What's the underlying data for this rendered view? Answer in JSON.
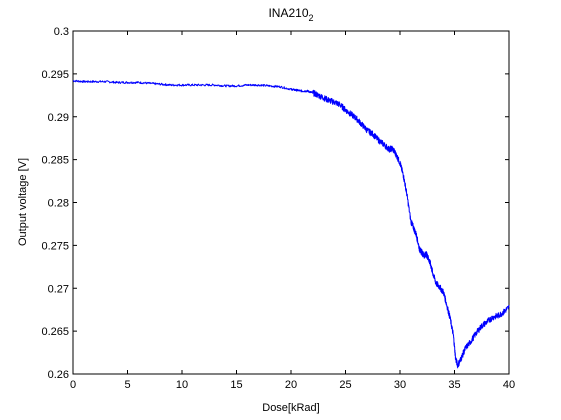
{
  "chart_data": {
    "type": "line",
    "title": "INA210",
    "title_subscript": "2",
    "xlabel": "Dose[kRad]",
    "ylabel": "Output voltage [V]",
    "xlim": [
      0,
      40
    ],
    "ylim": [
      0.26,
      0.3
    ],
    "grid": false,
    "x_ticks": [
      0,
      5,
      10,
      15,
      20,
      25,
      30,
      35,
      40
    ],
    "x_tick_labels": [
      "0",
      "5",
      "10",
      "15",
      "20",
      "25",
      "30",
      "35",
      "40"
    ],
    "y_ticks": [
      0.26,
      0.265,
      0.27,
      0.275,
      0.28,
      0.285,
      0.29,
      0.295,
      0.3
    ],
    "y_tick_labels": [
      "0.26",
      "0.265",
      "0.27",
      "0.275",
      "0.28",
      "0.285",
      "0.29",
      "0.295",
      "0.3"
    ],
    "series_color": "#0000ff",
    "series": [
      {
        "x": [
          0,
          1,
          2,
          3,
          4,
          5,
          6,
          7,
          8,
          9,
          10,
          11,
          12,
          13,
          14,
          15,
          16,
          17,
          18,
          19,
          20,
          20.5,
          21,
          21.5,
          22,
          22.5,
          23,
          23.5,
          24,
          24.5,
          25,
          25.5,
          26,
          26.5,
          27,
          27.5,
          28,
          28.5,
          29,
          29.3,
          29.6,
          30,
          30.3,
          30.6,
          31,
          31.2,
          31.5,
          31.8,
          32,
          32.2,
          32.4,
          32.6,
          32.8,
          33,
          33.3,
          33.6,
          34,
          34.3,
          34.6,
          34.9,
          35.1,
          35.3,
          35.6,
          36,
          36.5,
          37,
          37.5,
          38,
          38.5,
          39,
          39.5,
          40
        ],
        "values": [
          0.2942,
          0.2941,
          0.2941,
          0.2941,
          0.294,
          0.294,
          0.294,
          0.2939,
          0.2938,
          0.2937,
          0.2937,
          0.2937,
          0.2937,
          0.2937,
          0.2936,
          0.2936,
          0.2937,
          0.2937,
          0.2936,
          0.2935,
          0.2932,
          0.2931,
          0.293,
          0.293,
          0.2928,
          0.2925,
          0.2922,
          0.2919,
          0.2917,
          0.2914,
          0.2908,
          0.2903,
          0.2898,
          0.2891,
          0.2884,
          0.288,
          0.2873,
          0.2868,
          0.2862,
          0.2863,
          0.2857,
          0.2846,
          0.2832,
          0.2812,
          0.2778,
          0.2772,
          0.2762,
          0.2745,
          0.2742,
          0.2738,
          0.274,
          0.2735,
          0.2728,
          0.2718,
          0.2706,
          0.2702,
          0.2695,
          0.268,
          0.2665,
          0.2645,
          0.2618,
          0.261,
          0.2618,
          0.263,
          0.2638,
          0.2648,
          0.2656,
          0.2661,
          0.2666,
          0.2668,
          0.2672,
          0.2678
        ]
      }
    ]
  }
}
